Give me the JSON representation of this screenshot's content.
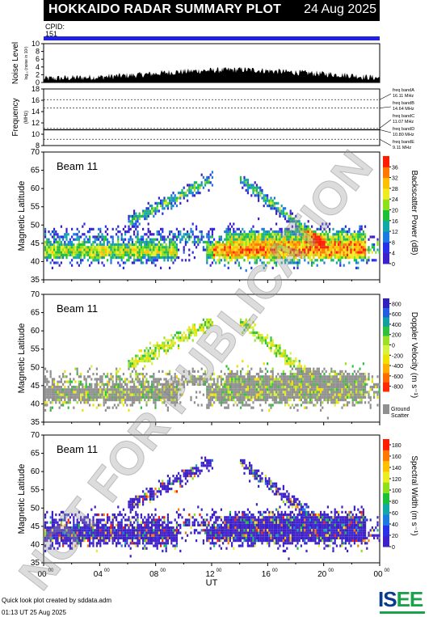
{
  "header": {
    "title": "HOKKAIDO RADAR SUMMARY PLOT",
    "date": "24 Aug 2025",
    "cpid_label": "CPID:",
    "cpid_value": "151"
  },
  "footer": {
    "line1": "Quick look plot created by sddata.adm",
    "line2": "01:13 UT 25 Aug 2025",
    "logo": "ISEE"
  },
  "watermark": "NOT FOR PUBLICATION",
  "colors": {
    "cpid_bar": "#2020e0",
    "ground_scatter": "#909090",
    "header_bg": "#000000"
  },
  "chart_data": [
    {
      "type": "area",
      "name": "noise-level",
      "ylabel": "Noise Level",
      "ylabel_sub": "log₁₀ (noise in 10²)",
      "ylim": [
        0,
        10
      ],
      "yticks": [
        0,
        2,
        4,
        6,
        8,
        10
      ],
      "x_hours": [
        0,
        1,
        2,
        3,
        4,
        5,
        6,
        7,
        8,
        9,
        10,
        11,
        12,
        13,
        14,
        15,
        16,
        17,
        18,
        19,
        20,
        21,
        22,
        23,
        24
      ],
      "values": [
        1.0,
        1.1,
        1.2,
        1.3,
        1.4,
        1.6,
        1.8,
        2.0,
        2.3,
        2.6,
        2.8,
        3.0,
        3.1,
        3.2,
        3.3,
        3.2,
        3.0,
        2.8,
        2.6,
        2.4,
        2.2,
        2.0,
        1.8,
        1.4,
        1.2
      ]
    },
    {
      "type": "line",
      "name": "frequency",
      "ylabel": "Frequency",
      "ylabel_sub": "(MHz)",
      "ylim": [
        8,
        18
      ],
      "yticks": [
        8,
        10,
        12,
        14,
        16,
        18
      ],
      "bands": [
        {
          "label": "freq bandA",
          "value_text": "16.11 MHz",
          "freq": 16.11
        },
        {
          "label": "freq bandB",
          "value_text": "14.64 MHz",
          "freq": 14.64
        },
        {
          "label": "freq bandC",
          "value_text": "11.07 MHz",
          "freq": 11.07
        },
        {
          "label": "freq bandD",
          "value_text": "10.80 MHz",
          "freq": 10.8
        },
        {
          "label": "freq bandE",
          "value_text": "9.11 MHz",
          "freq": 9.11
        }
      ],
      "active_freq": 10.8
    },
    {
      "type": "heatmap",
      "name": "backscatter-power",
      "beam_label": "Beam 11",
      "ylabel": "Magnetic Latitude",
      "ylim": [
        35,
        70
      ],
      "yticks": [
        35,
        40,
        45,
        50,
        55,
        60,
        65,
        70
      ],
      "colorbar_label": "Backscatter Power (dB)",
      "colorbar_ticks": [
        0,
        4,
        8,
        12,
        16,
        20,
        24,
        28,
        32,
        36
      ],
      "colorbar_range": [
        0,
        40
      ],
      "has_ground_scatter": false
    },
    {
      "type": "heatmap",
      "name": "doppler-velocity",
      "beam_label": "Beam 11",
      "ylabel": "Magnetic Latitude",
      "ylim": [
        35,
        70
      ],
      "yticks": [
        35,
        40,
        45,
        50,
        55,
        60,
        65,
        70
      ],
      "colorbar_label": "Doppler Velocity (m s⁻¹)",
      "colorbar_ticks": [
        -800,
        -600,
        -400,
        -200,
        0,
        200,
        400,
        600,
        800
      ],
      "colorbar_range": [
        -900,
        900
      ],
      "has_ground_scatter": true,
      "ground_scatter_label_1": "Ground",
      "ground_scatter_label_2": "Scatter"
    },
    {
      "type": "heatmap",
      "name": "spectral-width",
      "beam_label": "Beam 11",
      "ylabel": "Magnetic Latitude",
      "ylim": [
        35,
        70
      ],
      "yticks": [
        35,
        40,
        45,
        50,
        55,
        60,
        65,
        70
      ],
      "colorbar_label": "Spectral Width (m s⁻¹)",
      "colorbar_ticks": [
        0,
        20,
        40,
        60,
        80,
        100,
        120,
        140,
        160,
        180
      ],
      "colorbar_range": [
        0,
        190
      ],
      "has_ground_scatter": false,
      "xlabel": "UT",
      "xticks": [
        "00",
        "04",
        "08",
        "12",
        "16",
        "20",
        "00"
      ],
      "xtick_sup": "00",
      "xlim_hours": [
        0,
        24
      ]
    }
  ]
}
